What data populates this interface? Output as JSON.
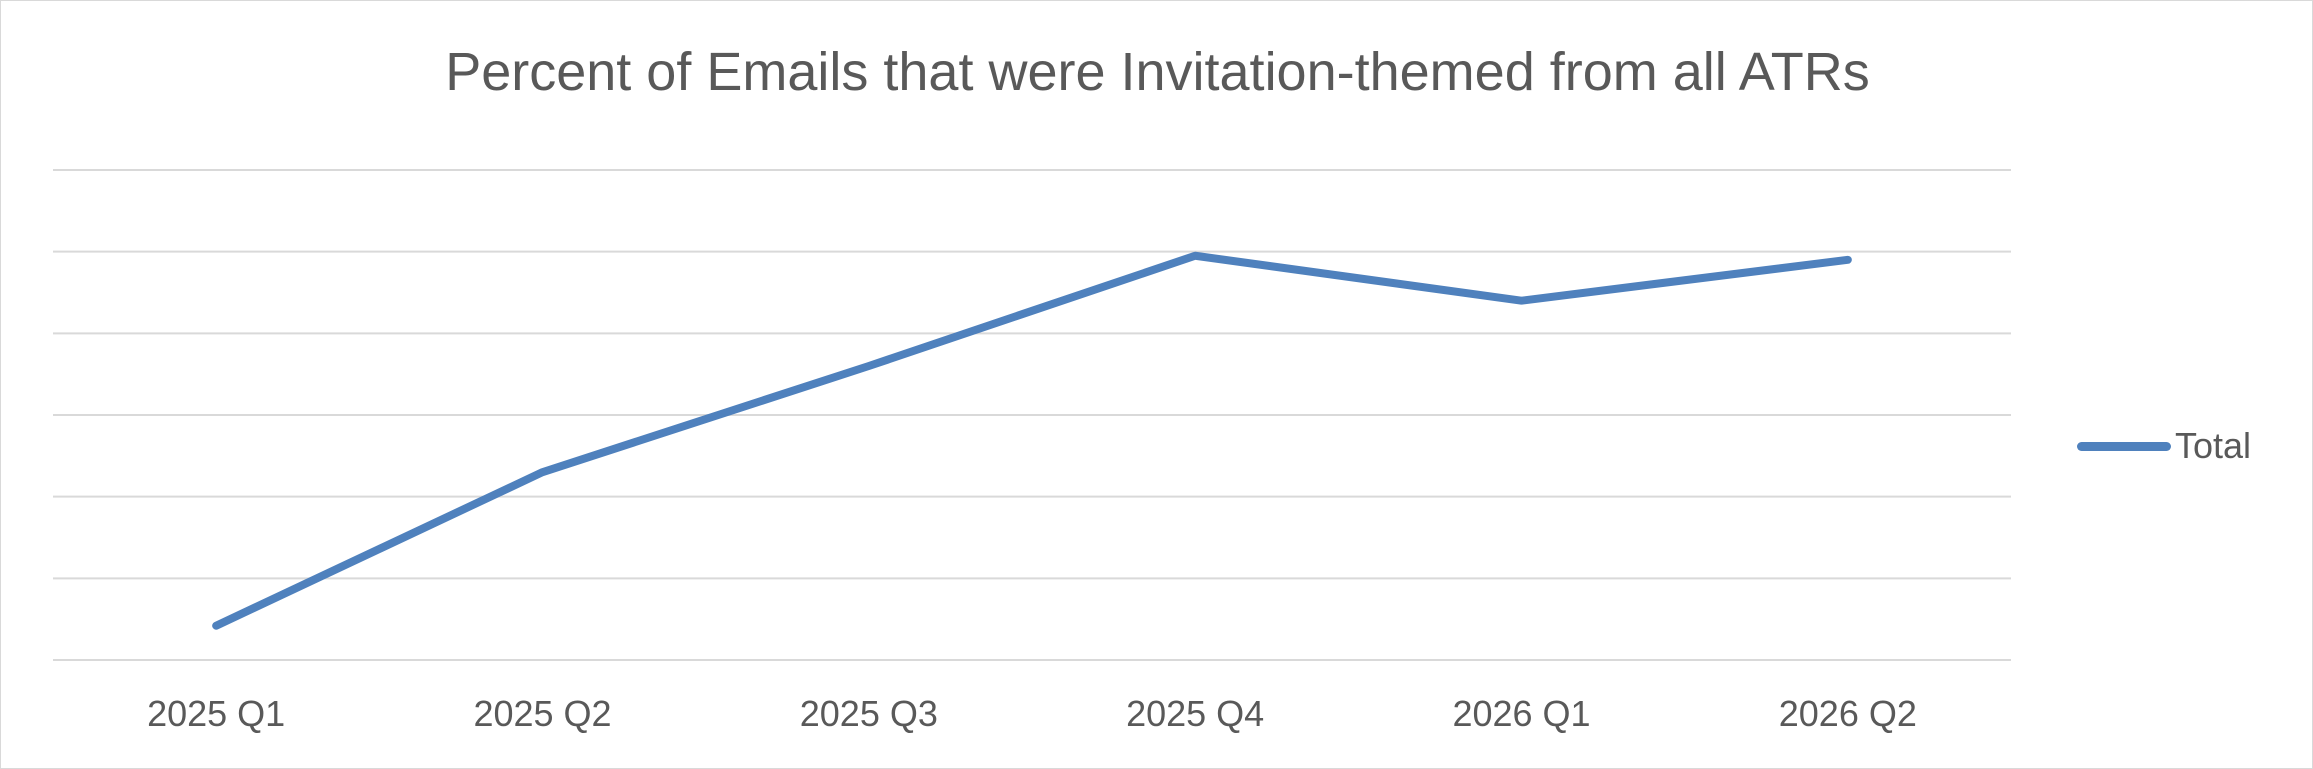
{
  "chart_data": {
    "type": "line",
    "title": "Percent of Emails that were Invitation-themed from all ATRs",
    "xlabel": "",
    "ylabel": "",
    "categories": [
      "2025 Q1",
      "2025 Q2",
      "2025 Q3",
      "2025 Q4",
      "2026 Q1",
      "2026 Q2"
    ],
    "series": [
      {
        "name": "Total",
        "values": [
          0.42,
          2.3,
          3.6,
          4.95,
          4.4,
          4.9
        ],
        "color": "#4f81bd"
      }
    ],
    "ylim": [
      0,
      6
    ],
    "y_tick_labels_shown": false,
    "grid": true,
    "legend_position": "right"
  }
}
